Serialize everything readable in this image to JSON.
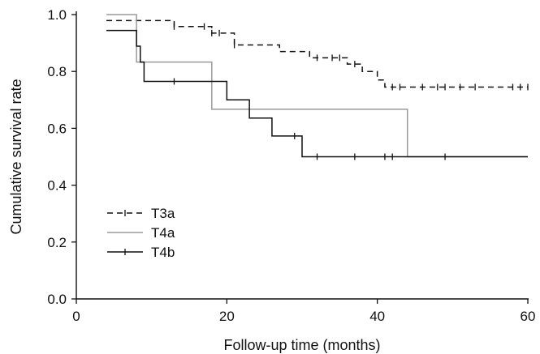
{
  "chart_data": {
    "type": "line",
    "subtype": "kaplan-meier step curve",
    "title": "",
    "xlabel": "Follow-up time (months)",
    "ylabel": "Cumulative survival rate",
    "xlim": [
      0,
      60
    ],
    "ylim": [
      0,
      1.0
    ],
    "xticks": [
      0,
      20,
      40,
      60
    ],
    "xtick_labels": [
      "0",
      "20",
      "40",
      "60"
    ],
    "yticks": [
      0,
      0.2,
      0.4,
      0.6,
      0.8,
      1.0
    ],
    "ytick_labels": [
      "0.0",
      "0.2",
      "0.4",
      "0.6",
      "0.8",
      "1.0"
    ],
    "grid": false,
    "legend_position": "bottom-left",
    "series": [
      {
        "name": "T3a",
        "color": "#111111",
        "line_style": "dashed",
        "steps": [
          [
            4,
            0.979
          ],
          [
            13,
            0.958
          ],
          [
            18,
            0.935
          ],
          [
            21,
            0.893
          ],
          [
            27,
            0.87
          ],
          [
            31,
            0.848
          ],
          [
            36,
            0.826
          ],
          [
            38,
            0.8
          ],
          [
            40,
            0.77
          ],
          [
            41,
            0.745
          ],
          [
            60,
            0.745
          ]
        ],
        "censored": [
          [
            13,
            0.958
          ],
          [
            17,
            0.958
          ],
          [
            18,
            0.935
          ],
          [
            19,
            0.935
          ],
          [
            21,
            0.893
          ],
          [
            32,
            0.848
          ],
          [
            34,
            0.848
          ],
          [
            35,
            0.848
          ],
          [
            37,
            0.826
          ],
          [
            42,
            0.745
          ],
          [
            43,
            0.745
          ],
          [
            46,
            0.745
          ],
          [
            48,
            0.745
          ],
          [
            49,
            0.745
          ],
          [
            51,
            0.745
          ],
          [
            53,
            0.745
          ],
          [
            58,
            0.745
          ],
          [
            59,
            0.745
          ],
          [
            60,
            0.745
          ]
        ]
      },
      {
        "name": "T4a",
        "color": "#9a9a9a",
        "line_style": "solid",
        "steps": [
          [
            4,
            1.0
          ],
          [
            8,
            0.833
          ],
          [
            18,
            0.667
          ],
          [
            44,
            0.5
          ],
          [
            60,
            0.5
          ]
        ],
        "censored": []
      },
      {
        "name": "T4b",
        "color": "#111111",
        "line_style": "solid",
        "steps": [
          [
            4,
            0.944
          ],
          [
            8,
            0.889
          ],
          [
            8.5,
            0.833
          ],
          [
            9,
            0.765
          ],
          [
            20,
            0.7
          ],
          [
            23,
            0.636
          ],
          [
            26,
            0.573
          ],
          [
            30,
            0.5
          ],
          [
            60,
            0.5
          ]
        ],
        "censored": [
          [
            13,
            0.765
          ],
          [
            29,
            0.573
          ],
          [
            32,
            0.5
          ],
          [
            37,
            0.5
          ],
          [
            41,
            0.5
          ],
          [
            42,
            0.5
          ],
          [
            49,
            0.5
          ]
        ]
      }
    ]
  }
}
